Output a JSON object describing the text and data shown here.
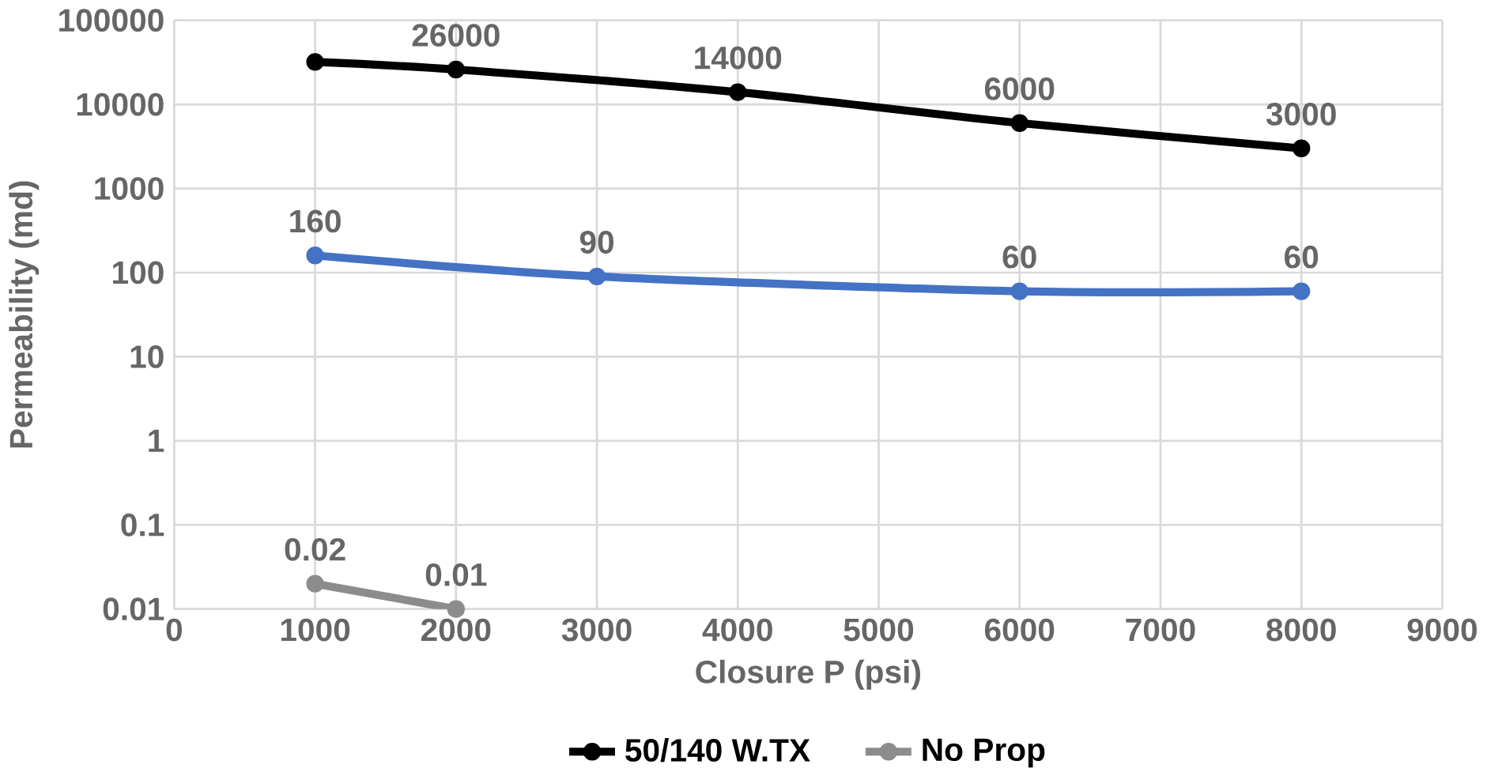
{
  "chart_data": {
    "type": "line",
    "xlabel": "Closure P (psi)",
    "ylabel": "Permeability (md)",
    "log": "y",
    "xlim": [
      0,
      9000
    ],
    "xticks": [
      0,
      1000,
      2000,
      3000,
      4000,
      5000,
      6000,
      7000,
      8000,
      9000
    ],
    "ylim": [
      0.01,
      100000
    ],
    "yticks": [
      0.01,
      0.1,
      1,
      10,
      100,
      1000,
      10000,
      100000
    ],
    "grid": true,
    "legend": "bottom",
    "marker": "circle",
    "line_style": "solid",
    "series": [
      {
        "name": "50/140 W.TX",
        "color": "#000000",
        "x": [
          1000,
          2000,
          4000,
          6000,
          8000
        ],
        "values": [
          32000,
          26000,
          14000,
          6000,
          3000
        ],
        "value_labels": [
          null,
          "26000",
          "14000",
          "6000",
          "3000"
        ]
      },
      {
        "color": "#4472c4",
        "x": [
          1000,
          3000,
          6000,
          8000
        ],
        "values": [
          160,
          90,
          60,
          60
        ],
        "value_labels": [
          "160",
          "90",
          "60",
          "60"
        ]
      },
      {
        "name": "No Prop",
        "color": "#8c8c8c",
        "x": [
          1000,
          2000
        ],
        "values": [
          0.02,
          0.01
        ],
        "value_labels": [
          "0.02",
          "0.01"
        ]
      }
    ]
  }
}
